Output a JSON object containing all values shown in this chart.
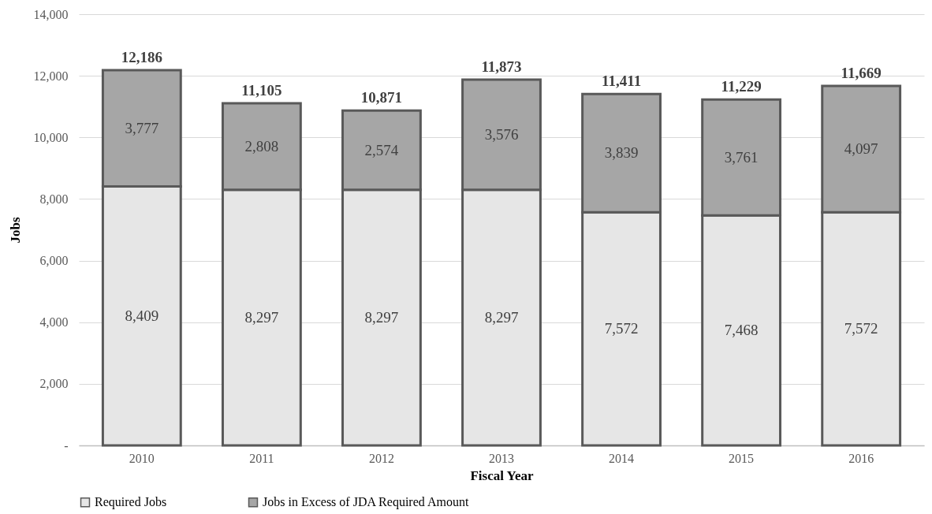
{
  "chart_data": {
    "type": "bar",
    "stacked": true,
    "xlabel": "Fiscal Year",
    "ylabel": "Jobs",
    "categories": [
      "2010",
      "2011",
      "2012",
      "2013",
      "2014",
      "2015",
      "2016"
    ],
    "series": [
      {
        "name": "Required Jobs",
        "color": "#e6e6e6",
        "values": [
          8409,
          8297,
          8297,
          8297,
          7572,
          7468,
          7572
        ],
        "value_labels": [
          "8,409",
          "8,297",
          "8,297",
          "8,297",
          "7,572",
          "7,468",
          "7,572"
        ]
      },
      {
        "name": "Jobs in Excess of JDA Required Amount",
        "color": "#a6a6a6",
        "values": [
          3777,
          2808,
          2574,
          3576,
          3839,
          3761,
          4097
        ],
        "value_labels": [
          "3,777",
          "2,808",
          "2,574",
          "3,576",
          "3,839",
          "3,761",
          "4,097"
        ]
      }
    ],
    "totals": [
      "12,186",
      "11,105",
      "10,871",
      "11,873",
      "11,411",
      "11,229",
      "11,669"
    ],
    "ylim": [
      0,
      14000
    ],
    "yticks": [
      {
        "value": 0,
        "label": "-"
      },
      {
        "value": 2000,
        "label": "2,000"
      },
      {
        "value": 4000,
        "label": "4,000"
      },
      {
        "value": 6000,
        "label": "6,000"
      },
      {
        "value": 8000,
        "label": "8,000"
      },
      {
        "value": 10000,
        "label": "10,000"
      },
      {
        "value": 12000,
        "label": "12,000"
      },
      {
        "value": 14000,
        "label": "14,000"
      }
    ],
    "grid": "y",
    "legend": "bottom"
  }
}
